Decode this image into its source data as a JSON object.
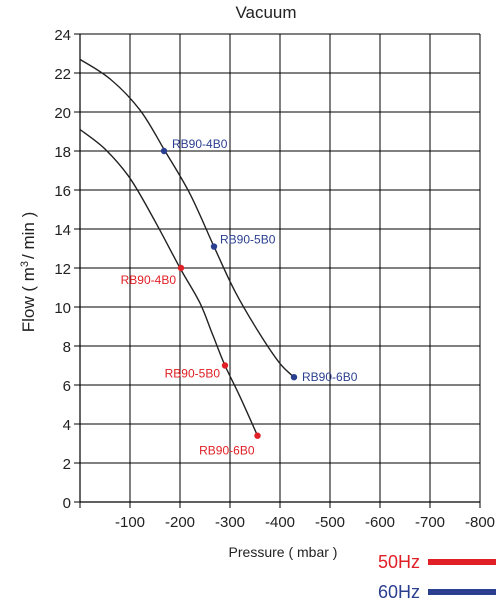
{
  "chart_data": {
    "type": "line",
    "title": "Vacuum",
    "xlabel": "Pressure ( mbar )",
    "ylabel_parts": [
      "Flow ( m",
      "3",
      "/ min )"
    ],
    "xlim": [
      0,
      -800
    ],
    "ylim": [
      0,
      24
    ],
    "x_tick_values": [
      0,
      -100,
      -200,
      -300,
      -400,
      -500,
      -600,
      -700,
      -800
    ],
    "x_tick_labels": [
      "-100",
      "-200",
      "-300",
      "-400",
      "-500",
      "-600",
      "-700",
      "-800"
    ],
    "x_tick_label_values": [
      -100,
      -200,
      -300,
      -400,
      -500,
      -600,
      -700,
      -800
    ],
    "y_tick_values": [
      0,
      2,
      4,
      6,
      8,
      10,
      12,
      14,
      16,
      18,
      20,
      22,
      24
    ],
    "y_tick_labels": [
      "0",
      "2",
      "4",
      "6",
      "8",
      "10",
      "12",
      "14",
      "16",
      "18",
      "20",
      "22",
      "24"
    ],
    "y_tick_label_values": [
      0,
      2,
      4,
      6,
      8,
      10,
      12,
      14,
      16,
      18,
      20,
      22,
      24
    ],
    "grid": true,
    "series": [
      {
        "name": "60Hz",
        "color": "#2a3f8f",
        "curve": [
          [
            0,
            22.7
          ],
          [
            -60,
            21.7
          ],
          [
            -120,
            20.1
          ],
          [
            -170,
            18.0
          ],
          [
            -220,
            15.8
          ],
          [
            -268,
            13.1
          ],
          [
            -310,
            10.8
          ],
          [
            -360,
            8.6
          ],
          [
            -400,
            7.1
          ],
          [
            -428,
            6.4
          ]
        ],
        "points": [
          {
            "label": "RB90-4B0",
            "x": -168,
            "y": 18.0
          },
          {
            "label": "RB90-5B0",
            "x": -268,
            "y": 13.1
          },
          {
            "label": "RB90-6B0",
            "x": -428,
            "y": 6.4
          }
        ]
      },
      {
        "name": "50Hz",
        "color": "#e02026",
        "curve": [
          [
            0,
            19.1
          ],
          [
            -50,
            18.1
          ],
          [
            -100,
            16.6
          ],
          [
            -150,
            14.4
          ],
          [
            -200,
            12.0
          ],
          [
            -240,
            10.2
          ],
          [
            -265,
            8.6
          ],
          [
            -290,
            7.0
          ],
          [
            -320,
            5.4
          ],
          [
            -355,
            3.4
          ]
        ],
        "points": [
          {
            "label": "RB90-4B0",
            "x": -202,
            "y": 12.0
          },
          {
            "label": "RB90-5B0",
            "x": -290,
            "y": 7.0
          },
          {
            "label": "RB90-6B0",
            "x": -355,
            "y": 3.4
          }
        ]
      }
    ],
    "legend": [
      {
        "label": "50Hz",
        "color": "#e02026"
      },
      {
        "label": "60Hz",
        "color": "#2a3f8f"
      }
    ],
    "legend_position": "bottom-right"
  }
}
